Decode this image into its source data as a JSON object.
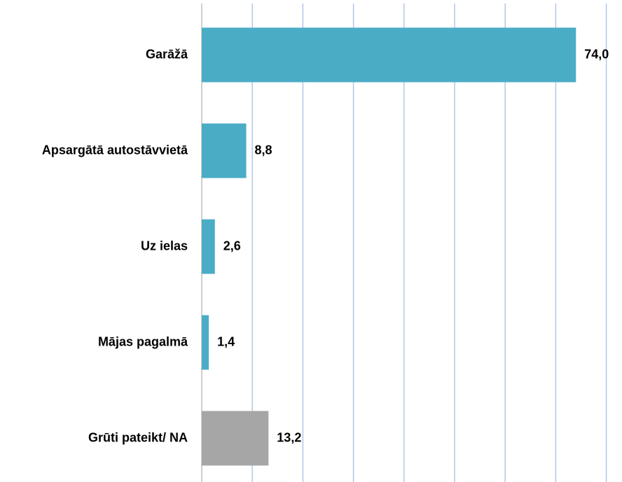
{
  "chart_data": {
    "type": "bar",
    "orientation": "horizontal",
    "categories": [
      "Garāžā",
      "Apsargātā autostāvvietā",
      "Uz ielas",
      "Mājas pagalmā",
      "Grūti pateikt/ NA"
    ],
    "values": [
      74.0,
      8.8,
      2.6,
      1.4,
      13.2
    ],
    "value_labels": [
      "74,0",
      "8,8",
      "2,6",
      "1,4",
      "13,2"
    ],
    "colors": [
      "#4bacc6",
      "#4bacc6",
      "#4bacc6",
      "#4bacc6",
      "#a6a6a6"
    ],
    "xlim": [
      0,
      80
    ],
    "xticks": [
      0,
      10,
      20,
      30,
      40,
      50,
      60,
      70,
      80
    ],
    "grid": true
  }
}
